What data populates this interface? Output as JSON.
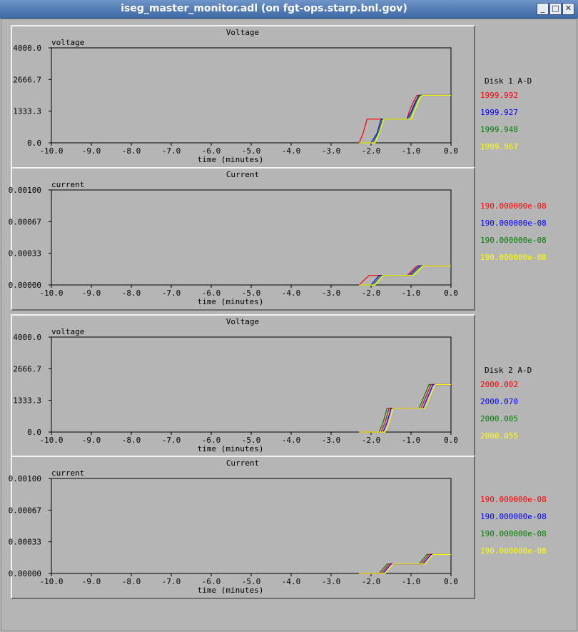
{
  "window": {
    "title": "iseg_master_monitor.adl (on fgt-ops.starp.bnl.gov)"
  },
  "colors": {
    "red": "#ff0000",
    "blue": "#0000ff",
    "green": "#008000",
    "yellow": "#ffff00",
    "bg": "#b5b5b5"
  },
  "legend": [
    {
      "header": "Disk 1 A-D",
      "voltage": [
        "1999.992",
        "1999.927",
        "1999.948",
        "1999.967"
      ],
      "current": [
        "190.000000e-08",
        "190.000000e-08",
        "190.000000e-08",
        "190.000000e-08"
      ]
    },
    {
      "header": "Disk 2 A-D",
      "voltage": [
        "2000.002",
        "2000.070",
        "2000.005",
        "2000.055"
      ],
      "current": [
        "190.000000e-08",
        "190.000000e-08",
        "190.000000e-08",
        "190.000000e-08"
      ]
    }
  ],
  "chart_data": [
    {
      "type": "line",
      "title": "Voltage",
      "ylabel": "voltage",
      "xlabel": "time (minutes)",
      "xlim": [
        -10,
        0
      ],
      "ylim": [
        0,
        4000
      ],
      "yticks": [
        "4000.0",
        "2666.7",
        "1333.3",
        "0.0"
      ],
      "xticks": [
        "-10.0",
        "-9.0",
        "-8.0",
        "-7.0",
        "-6.0",
        "-5.0",
        "-4.0",
        "-3.0",
        "-2.0",
        "-1.0",
        "0.0"
      ],
      "series": [
        {
          "color": "red",
          "points": [
            [
              -2.3,
              0
            ],
            [
              -2.2,
              400
            ],
            [
              -2.1,
              1000
            ],
            [
              -1.75,
              1000
            ],
            [
              -1.1,
              1000
            ],
            [
              -1.05,
              1300
            ],
            [
              -0.95,
              1700
            ],
            [
              -0.85,
              2000
            ],
            [
              0,
              2000
            ]
          ]
        },
        {
          "color": "blue",
          "points": [
            [
              -2.3,
              0
            ],
            [
              -2.0,
              0
            ],
            [
              -1.85,
              400
            ],
            [
              -1.75,
              1000
            ],
            [
              -1.1,
              1000
            ],
            [
              -1.0,
              1300
            ],
            [
              -0.9,
              1700
            ],
            [
              -0.8,
              2000
            ],
            [
              0,
              2000
            ]
          ]
        },
        {
          "color": "green",
          "points": [
            [
              -2.3,
              0
            ],
            [
              -1.95,
              0
            ],
            [
              -1.8,
              500
            ],
            [
              -1.72,
              1000
            ],
            [
              -1.05,
              1000
            ],
            [
              -0.95,
              1400
            ],
            [
              -0.85,
              1800
            ],
            [
              -0.78,
              2000
            ],
            [
              0,
              2000
            ]
          ]
        },
        {
          "color": "yellow",
          "points": [
            [
              -2.3,
              0
            ],
            [
              -1.9,
              0
            ],
            [
              -1.78,
              500
            ],
            [
              -1.68,
              1000
            ],
            [
              -1.0,
              1000
            ],
            [
              -0.9,
              1400
            ],
            [
              -0.8,
              1800
            ],
            [
              -0.72,
              2000
            ],
            [
              0,
              2000
            ]
          ]
        }
      ]
    },
    {
      "type": "line",
      "title": "Current",
      "ylabel": "current",
      "xlabel": "time (minutes)",
      "xlim": [
        -10,
        0
      ],
      "ylim": [
        0,
        0.001
      ],
      "yticks": [
        "0.00100",
        "0.00067",
        "0.00033",
        "0.00000"
      ],
      "xticks": [
        "-10.0",
        "-9.0",
        "-8.0",
        "-7.0",
        "-6.0",
        "-5.0",
        "-4.0",
        "-3.0",
        "-2.0",
        "-1.0",
        "0.0"
      ],
      "series": [
        {
          "color": "red",
          "points": [
            [
              -2.3,
              0
            ],
            [
              -2.05,
              0.0001
            ],
            [
              -1.75,
              0.0001
            ],
            [
              -1.1,
              0.0001
            ],
            [
              -0.85,
              0.0002
            ],
            [
              0,
              0.0002
            ]
          ]
        },
        {
          "color": "blue",
          "points": [
            [
              -2.3,
              0
            ],
            [
              -2.0,
              0
            ],
            [
              -1.8,
              0.0001
            ],
            [
              -1.05,
              0.0001
            ],
            [
              -0.8,
              0.0002
            ],
            [
              0,
              0.0002
            ]
          ]
        },
        {
          "color": "green",
          "points": [
            [
              -2.3,
              0
            ],
            [
              -1.95,
              0
            ],
            [
              -1.75,
              0.0001
            ],
            [
              -1.0,
              0.0001
            ],
            [
              -0.75,
              0.0002
            ],
            [
              0,
              0.0002
            ]
          ]
        },
        {
          "color": "yellow",
          "points": [
            [
              -2.3,
              0
            ],
            [
              -1.9,
              0
            ],
            [
              -1.7,
              0.0001
            ],
            [
              -0.95,
              0.0001
            ],
            [
              -0.7,
              0.0002
            ],
            [
              0,
              0.0002
            ]
          ]
        }
      ]
    },
    {
      "type": "line",
      "title": "Voltage",
      "ylabel": "voltage",
      "xlabel": "time (minutes)",
      "xlim": [
        -10,
        0
      ],
      "ylim": [
        0,
        4000
      ],
      "yticks": [
        "4000.0",
        "2666.7",
        "1333.3",
        "0.0"
      ],
      "xticks": [
        "-10.0",
        "-9.0",
        "-8.0",
        "-7.0",
        "-6.0",
        "-5.0",
        "-4.0",
        "-3.0",
        "-2.0",
        "-1.0",
        "0.0"
      ],
      "series": [
        {
          "color": "green",
          "points": [
            [
              -2.3,
              0
            ],
            [
              -1.8,
              0
            ],
            [
              -1.7,
              400
            ],
            [
              -1.6,
              1000
            ],
            [
              -0.8,
              1000
            ],
            [
              -0.7,
              1400
            ],
            [
              -0.6,
              1800
            ],
            [
              -0.55,
              2000
            ],
            [
              0,
              2000
            ]
          ]
        },
        {
          "color": "red",
          "points": [
            [
              -2.3,
              0
            ],
            [
              -1.75,
              0
            ],
            [
              -1.65,
              400
            ],
            [
              -1.55,
              1000
            ],
            [
              -0.75,
              1000
            ],
            [
              -0.65,
              1400
            ],
            [
              -0.55,
              1800
            ],
            [
              -0.5,
              2000
            ],
            [
              0,
              2000
            ]
          ]
        },
        {
          "color": "blue",
          "points": [
            [
              -2.3,
              0
            ],
            [
              -1.7,
              0
            ],
            [
              -1.6,
              400
            ],
            [
              -1.5,
              1000
            ],
            [
              -0.7,
              1000
            ],
            [
              -0.6,
              1400
            ],
            [
              -0.5,
              1800
            ],
            [
              -0.45,
              2000
            ],
            [
              0,
              2000
            ]
          ]
        },
        {
          "color": "yellow",
          "points": [
            [
              -2.3,
              0
            ],
            [
              -1.65,
              0
            ],
            [
              -1.55,
              400
            ],
            [
              -1.45,
              1000
            ],
            [
              -0.65,
              1000
            ],
            [
              -0.55,
              1400
            ],
            [
              -0.45,
              1800
            ],
            [
              -0.4,
              2000
            ],
            [
              0,
              2000
            ]
          ]
        }
      ]
    },
    {
      "type": "line",
      "title": "Current",
      "ylabel": "current",
      "xlabel": "time (minutes)",
      "xlim": [
        -10,
        0
      ],
      "ylim": [
        0,
        0.001
      ],
      "yticks": [
        "0.00100",
        "0.00067",
        "0.00033",
        "0.00000"
      ],
      "xticks": [
        "-10.0",
        "-9.0",
        "-8.0",
        "-7.0",
        "-6.0",
        "-5.0",
        "-4.0",
        "-3.0",
        "-2.0",
        "-1.0",
        "0.0"
      ],
      "series": [
        {
          "color": "green",
          "points": [
            [
              -2.3,
              0
            ],
            [
              -1.8,
              0
            ],
            [
              -1.6,
              0.0001
            ],
            [
              -0.8,
              0.0001
            ],
            [
              -0.6,
              0.0002
            ],
            [
              0,
              0.0002
            ]
          ]
        },
        {
          "color": "red",
          "points": [
            [
              -2.3,
              0
            ],
            [
              -1.75,
              0
            ],
            [
              -1.55,
              0.0001
            ],
            [
              -0.75,
              0.0001
            ],
            [
              -0.55,
              0.0002
            ],
            [
              0,
              0.0002
            ]
          ]
        },
        {
          "color": "blue",
          "points": [
            [
              -2.3,
              0
            ],
            [
              -1.7,
              0
            ],
            [
              -1.5,
              0.0001
            ],
            [
              -0.7,
              0.0001
            ],
            [
              -0.5,
              0.0002
            ],
            [
              0,
              0.0002
            ]
          ]
        },
        {
          "color": "yellow",
          "points": [
            [
              -2.3,
              0
            ],
            [
              -1.65,
              0
            ],
            [
              -1.45,
              0.0001
            ],
            [
              -0.65,
              0.0001
            ],
            [
              -0.45,
              0.0002
            ],
            [
              0,
              0.0002
            ]
          ]
        }
      ]
    }
  ]
}
